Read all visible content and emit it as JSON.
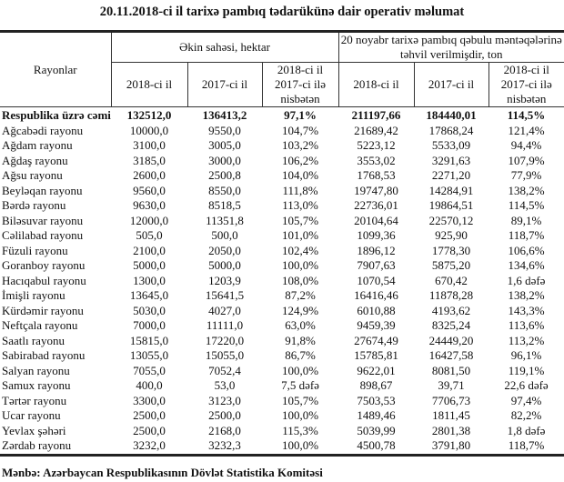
{
  "title": "20.11.2018-ci il tarixə pambıq tədarükünə dair operativ məlumat",
  "header": {
    "rayonlar": "Rayonlar",
    "group1": "Əkin sahəsi, hektar",
    "group2": "20 noyabr tarixə pambıq qəbulu məntəqələrinə təhvil verilmişdir, ton",
    "sub": [
      "2018-ci il",
      "2017-ci il",
      "2018-ci il 2017-ci ilə nisbətən",
      "2018-ci il",
      "2017-ci il",
      "2018-ci il 2017-ci ilə nisbətən"
    ]
  },
  "rows": [
    [
      "Respublika üzrə cəmi",
      "132512,0",
      "136413,2",
      "97,1%",
      "211197,66",
      "184440,01",
      "114,5%"
    ],
    [
      "Ağcabədi rayonu",
      "10000,0",
      "9550,0",
      "104,7%",
      "21689,42",
      "17868,24",
      "121,4%"
    ],
    [
      "Ağdam rayonu",
      "3100,0",
      "3005,0",
      "103,2%",
      "5223,12",
      "5533,09",
      "94,4%"
    ],
    [
      "Ağdaş rayonu",
      "3185,0",
      "3000,0",
      "106,2%",
      "3553,02",
      "3291,63",
      "107,9%"
    ],
    [
      "Ağsu rayonu",
      "2600,0",
      "2500,8",
      "104,0%",
      "1768,53",
      "2271,20",
      "77,9%"
    ],
    [
      "Beyləqan rayonu",
      "9560,0",
      "8550,0",
      "111,8%",
      "19747,80",
      "14284,91",
      "138,2%"
    ],
    [
      "Bərdə rayonu",
      "9630,0",
      "8518,5",
      "113,0%",
      "22736,01",
      "19864,51",
      "114,5%"
    ],
    [
      "Biləsuvar rayonu",
      "12000,0",
      "11351,8",
      "105,7%",
      "20104,64",
      "22570,12",
      "89,1%"
    ],
    [
      "Cəlilabad rayonu",
      "505,0",
      "500,0",
      "101,0%",
      "1099,36",
      "925,90",
      "118,7%"
    ],
    [
      "Füzuli rayonu",
      "2100,0",
      "2050,0",
      "102,4%",
      "1896,12",
      "1778,30",
      "106,6%"
    ],
    [
      "Goranboy rayonu",
      "5000,0",
      "5000,0",
      "100,0%",
      "7907,63",
      "5875,20",
      "134,6%"
    ],
    [
      "Hacıqabul rayonu",
      "1300,0",
      "1203,9",
      "108,0%",
      "1070,54",
      "670,42",
      "1,6 dəfə"
    ],
    [
      "İmişli rayonu",
      "13645,0",
      "15641,5",
      "87,2%",
      "16416,46",
      "11878,28",
      "138,2%"
    ],
    [
      "Kürdəmir rayonu",
      "5030,0",
      "4027,0",
      "124,9%",
      "6010,88",
      "4193,62",
      "143,3%"
    ],
    [
      "Neftçala rayonu",
      "7000,0",
      "11111,0",
      "63,0%",
      "9459,39",
      "8325,24",
      "113,6%"
    ],
    [
      "Saatlı rayonu",
      "15815,0",
      "17220,0",
      "91,8%",
      "27674,49",
      "24449,20",
      "113,2%"
    ],
    [
      "Sabirabad rayonu",
      "13055,0",
      "15055,0",
      "86,7%",
      "15785,81",
      "16427,58",
      "96,1%"
    ],
    [
      "Salyan rayonu",
      "7055,0",
      "7052,4",
      "100,0%",
      "9622,01",
      "8081,50",
      "119,1%"
    ],
    [
      "Samux rayonu",
      "400,0",
      "53,0",
      "7,5 dəfə",
      "898,67",
      "39,71",
      "22,6 dəfə"
    ],
    [
      "Tərtər rayonu",
      "3300,0",
      "3123,0",
      "105,7%",
      "7503,53",
      "7706,73",
      "97,4%"
    ],
    [
      "Ucar rayonu",
      "2500,0",
      "2500,0",
      "100,0%",
      "1489,46",
      "1811,45",
      "82,2%"
    ],
    [
      "Yevlax şəhəri",
      "2500,0",
      "2168,0",
      "115,3%",
      "5039,99",
      "2801,38",
      "1,8 dəfə"
    ],
    [
      "Zərdab rayonu",
      "3232,0",
      "3232,3",
      "100,0%",
      "4500,78",
      "3791,80",
      "118,7%"
    ]
  ],
  "source": "Mənbə: Azərbaycan Respublikasının Dövlət Statistika Komitəsi"
}
